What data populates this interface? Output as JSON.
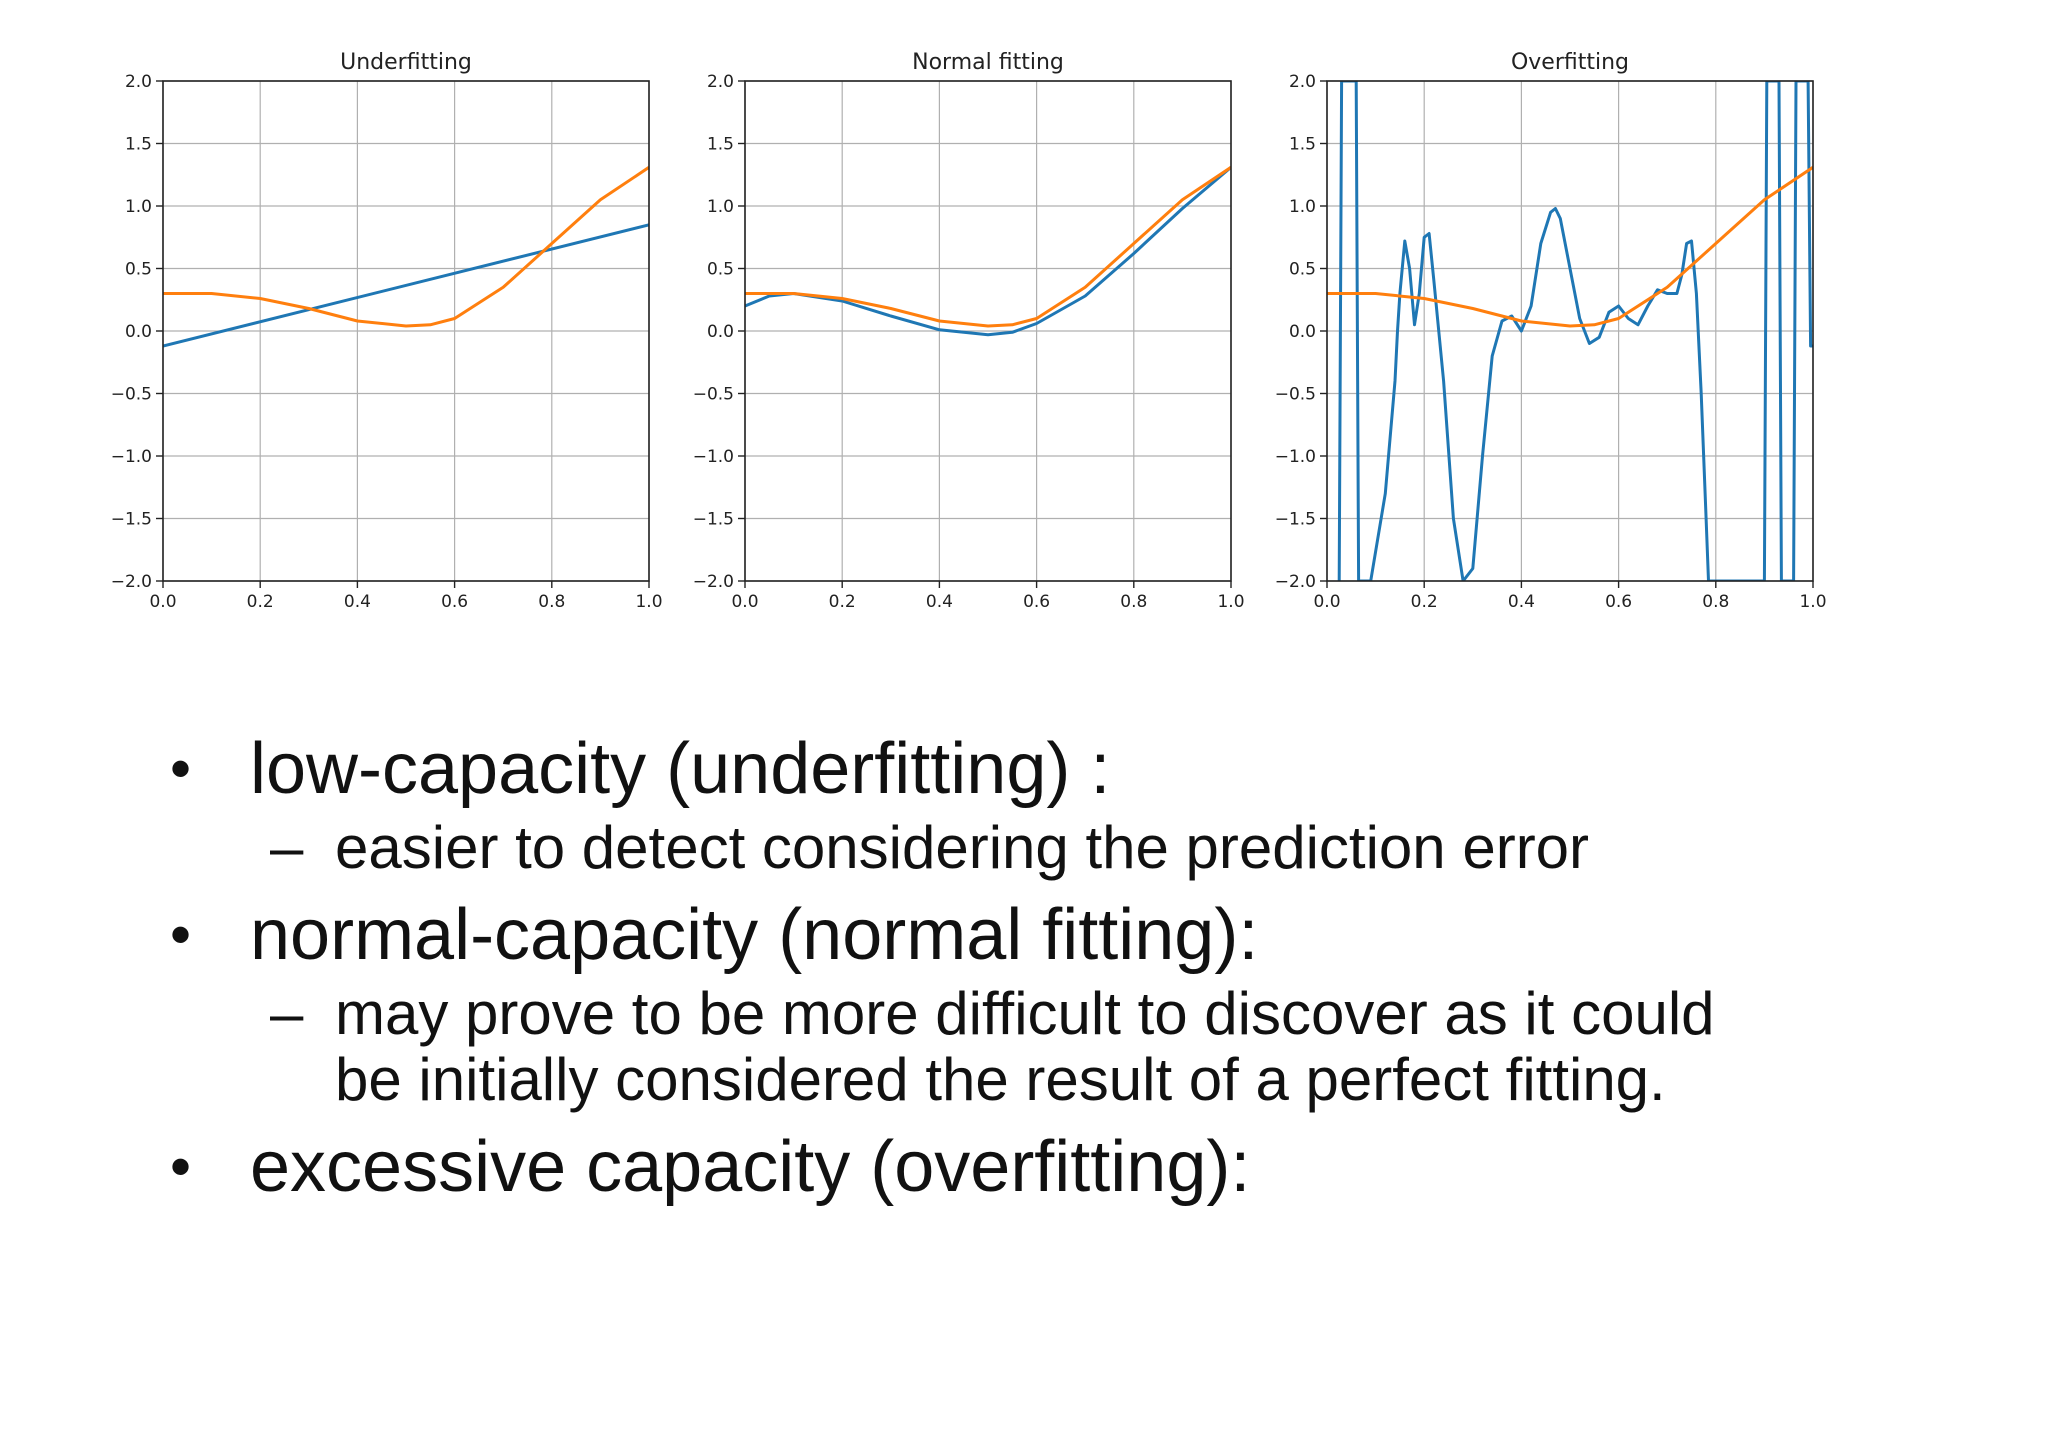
{
  "chart_data": [
    {
      "type": "line",
      "title": "Underfitting",
      "xlim": [
        0.0,
        1.0
      ],
      "ylim": [
        -2.0,
        2.0
      ],
      "xticks": [
        "0.0",
        "0.2",
        "0.4",
        "0.6",
        "0.8",
        "1.0"
      ],
      "yticks": [
        "2.0",
        "1.5",
        "1.0",
        "0.5",
        "0.0",
        "−0.5",
        "−1.0",
        "−1.5",
        "−2.0"
      ],
      "grid": true,
      "series": [
        {
          "color": "#1f77b4",
          "x": [
            0.0,
            1.0
          ],
          "y": [
            -0.12,
            0.85
          ]
        },
        {
          "color": "#ff7f0e",
          "x": [
            0.0,
            0.1,
            0.2,
            0.3,
            0.4,
            0.5,
            0.55,
            0.6,
            0.7,
            0.8,
            0.9,
            1.0
          ],
          "y": [
            0.3,
            0.3,
            0.26,
            0.18,
            0.08,
            0.04,
            0.05,
            0.1,
            0.35,
            0.7,
            1.05,
            1.31
          ]
        }
      ]
    },
    {
      "type": "line",
      "title": "Normal fitting",
      "xlim": [
        0.0,
        1.0
      ],
      "ylim": [
        -2.0,
        2.0
      ],
      "xticks": [
        "0.0",
        "0.2",
        "0.4",
        "0.6",
        "0.8",
        "1.0"
      ],
      "yticks": [
        "2.0",
        "1.5",
        "1.0",
        "0.5",
        "0.0",
        "−0.5",
        "−1.0",
        "−1.5",
        "−2.0"
      ],
      "grid": true,
      "series": [
        {
          "color": "#1f77b4",
          "x": [
            0.0,
            0.05,
            0.1,
            0.2,
            0.3,
            0.4,
            0.5,
            0.55,
            0.6,
            0.7,
            0.8,
            0.9,
            1.0
          ],
          "y": [
            0.2,
            0.28,
            0.3,
            0.24,
            0.12,
            0.01,
            -0.03,
            -0.01,
            0.06,
            0.28,
            0.62,
            0.98,
            1.31
          ]
        },
        {
          "color": "#ff7f0e",
          "x": [
            0.0,
            0.1,
            0.2,
            0.3,
            0.4,
            0.5,
            0.55,
            0.6,
            0.7,
            0.8,
            0.9,
            1.0
          ],
          "y": [
            0.3,
            0.3,
            0.26,
            0.18,
            0.08,
            0.04,
            0.05,
            0.1,
            0.35,
            0.7,
            1.05,
            1.31
          ]
        }
      ]
    },
    {
      "type": "line",
      "title": "Overfitting",
      "xlim": [
        0.0,
        1.0
      ],
      "ylim": [
        -2.0,
        2.0
      ],
      "xticks": [
        "0.0",
        "0.2",
        "0.4",
        "0.6",
        "0.8",
        "1.0"
      ],
      "yticks": [
        "2.0",
        "1.5",
        "1.0",
        "0.5",
        "0.0",
        "−0.5",
        "−1.0",
        "−1.5",
        "−2.0"
      ],
      "grid": true,
      "series": [
        {
          "color": "#1f77b4",
          "x": [
            0.025,
            0.03,
            0.06,
            0.065,
            0.09,
            0.12,
            0.14,
            0.145,
            0.15,
            0.16,
            0.17,
            0.18,
            0.19,
            0.2,
            0.21,
            0.22,
            0.24,
            0.26,
            0.28,
            0.3,
            0.32,
            0.34,
            0.36,
            0.38,
            0.4,
            0.42,
            0.44,
            0.46,
            0.47,
            0.48,
            0.5,
            0.52,
            0.54,
            0.56,
            0.58,
            0.6,
            0.62,
            0.64,
            0.66,
            0.68,
            0.7,
            0.72,
            0.73,
            0.74,
            0.75,
            0.76,
            0.77,
            0.78,
            0.785,
            0.8,
            0.9,
            0.905,
            0.93,
            0.935,
            0.96,
            0.965,
            0.99,
            0.995,
            1.0
          ],
          "y": [
            -2.0,
            2.0,
            2.0,
            -2.0,
            -2.0,
            -1.3,
            -0.4,
            0.0,
            0.3,
            0.72,
            0.5,
            0.05,
            0.3,
            0.75,
            0.78,
            0.4,
            -0.4,
            -1.5,
            -2.0,
            -1.9,
            -1.0,
            -0.2,
            0.08,
            0.12,
            0.0,
            0.2,
            0.7,
            0.95,
            0.98,
            0.9,
            0.5,
            0.1,
            -0.1,
            -0.05,
            0.15,
            0.2,
            0.1,
            0.05,
            0.2,
            0.33,
            0.3,
            0.3,
            0.45,
            0.7,
            0.72,
            0.3,
            -0.5,
            -1.5,
            -2.0,
            -2.0,
            -2.0,
            2.0,
            2.0,
            -2.0,
            -2.0,
            2.0,
            2.0,
            -0.12,
            -0.12
          ]
        },
        {
          "color": "#ff7f0e",
          "x": [
            0.0,
            0.1,
            0.2,
            0.3,
            0.4,
            0.5,
            0.55,
            0.6,
            0.7,
            0.8,
            0.9,
            1.0
          ],
          "y": [
            0.3,
            0.3,
            0.26,
            0.18,
            0.08,
            0.04,
            0.05,
            0.1,
            0.35,
            0.7,
            1.05,
            1.31
          ]
        }
      ]
    }
  ],
  "bullets": [
    {
      "text": "low-capacity (underfitting) :",
      "sub": [
        "easier to detect considering the prediction error"
      ]
    },
    {
      "text": "normal-capacity (normal fitting):",
      "sub": [
        "may prove to be more difficult to discover as it could",
        "be initially considered the result of a perfect fitting."
      ]
    },
    {
      "text": "excessive capacity (overfitting):",
      "sub": []
    }
  ],
  "bullet_glyph": "•",
  "sub_glyph": "–"
}
